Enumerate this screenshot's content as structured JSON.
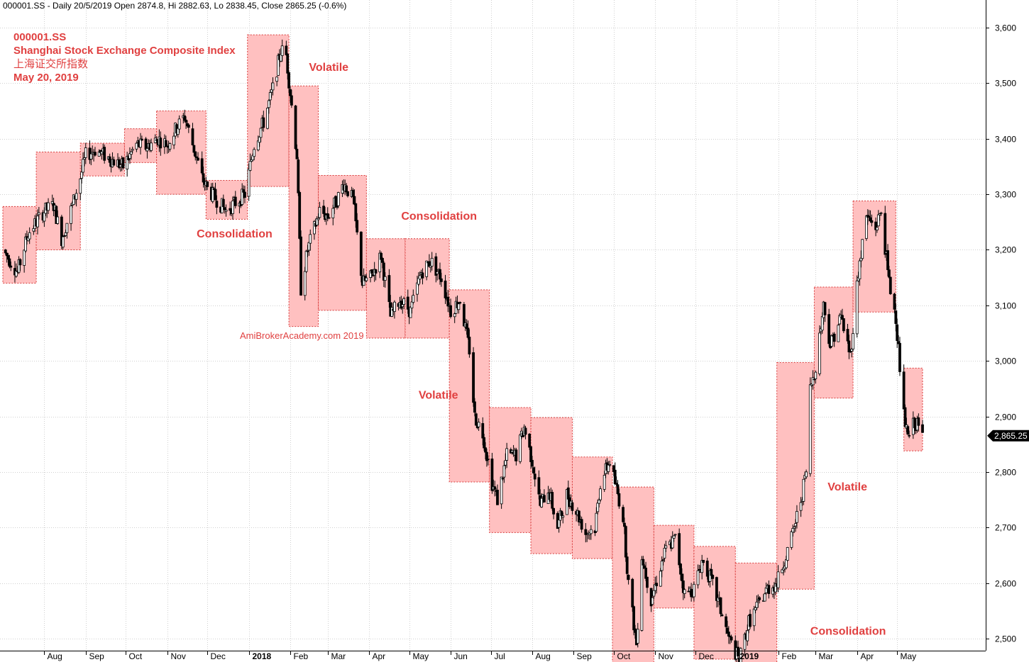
{
  "header": {
    "line": "000001.SS - Daily 20/5/2019 Open 2874.8, Hi 2882.63, Lo 2838.45, Close 2865.25 (-0.6%)"
  },
  "title_block": {
    "symbol": "000001.SS",
    "name": "Shanghai Stock Exchange Composite Index",
    "name_cn": "上海证交所指数",
    "date": "May 20, 2019"
  },
  "watermark": "AmiBrokerAcademy.com  2019",
  "colors": {
    "accent_text": "#e04040",
    "box_fill": "#ffc0c0",
    "box_border": "#d83c3c",
    "candle": "#000000",
    "grid": "#d0d0d0"
  },
  "chart_data": {
    "type": "candlestick",
    "title": "000001.SS - Daily 20/5/2019 Open 2874.8, Hi 2882.63, Lo 2838.45, Close 2865.25 (-0.6%)",
    "x_range": [
      "2017-07-01",
      "2019-05-20"
    ],
    "ylim": [
      2430,
      3640
    ],
    "y_ticks": [
      2500,
      2600,
      2700,
      2800,
      2900,
      3000,
      3100,
      3200,
      3300,
      3400,
      3500,
      3600
    ],
    "y_tick_labels": [
      "2,500",
      "2,600",
      "2,700",
      "2,800",
      "2,900",
      "3,000",
      "3,100",
      "3,200",
      "3,300",
      "3,400",
      "3,500",
      "3,600"
    ],
    "last_value": 2865.25,
    "last_value_label": "2,865.25",
    "grid": true,
    "months": [
      {
        "label": "Aug",
        "date": "2017-08-01",
        "bold": false
      },
      {
        "label": "Sep",
        "date": "2017-09-01",
        "bold": false
      },
      {
        "label": "Oct",
        "date": "2017-10-01",
        "bold": false
      },
      {
        "label": "Nov",
        "date": "2017-11-01",
        "bold": false
      },
      {
        "label": "Dec",
        "date": "2017-12-01",
        "bold": false
      },
      {
        "label": "2018",
        "date": "2018-01-01",
        "bold": true
      },
      {
        "label": "Feb",
        "date": "2018-02-01",
        "bold": false
      },
      {
        "label": "Mar",
        "date": "2018-03-01",
        "bold": false
      },
      {
        "label": "Apr",
        "date": "2018-04-01",
        "bold": false
      },
      {
        "label": "May",
        "date": "2018-05-01",
        "bold": false
      },
      {
        "label": "Jun",
        "date": "2018-06-01",
        "bold": false
      },
      {
        "label": "Jul",
        "date": "2018-07-01",
        "bold": false
      },
      {
        "label": "Aug",
        "date": "2018-08-01",
        "bold": false
      },
      {
        "label": "Sep",
        "date": "2018-09-01",
        "bold": false
      },
      {
        "label": "Oct",
        "date": "2018-10-01",
        "bold": false
      },
      {
        "label": "Nov",
        "date": "2018-11-01",
        "bold": false
      },
      {
        "label": "Dec",
        "date": "2018-12-01",
        "bold": false
      },
      {
        "label": "2019",
        "date": "2019-01-01",
        "bold": true
      },
      {
        "label": "Feb",
        "date": "2019-02-01",
        "bold": false
      },
      {
        "label": "Mar",
        "date": "2019-03-01",
        "bold": false
      },
      {
        "label": "Apr",
        "date": "2019-04-01",
        "bold": false
      },
      {
        "label": "May",
        "date": "2019-05-01",
        "bold": false
      }
    ],
    "path": [
      [
        "2017-07-01",
        3200
      ],
      [
        "2017-07-12",
        3160
      ],
      [
        "2017-07-20",
        3230
      ],
      [
        "2017-08-01",
        3270
      ],
      [
        "2017-08-08",
        3280
      ],
      [
        "2017-08-14",
        3220
      ],
      [
        "2017-08-22",
        3280
      ],
      [
        "2017-08-28",
        3330
      ],
      [
        "2017-09-01",
        3370
      ],
      [
        "2017-09-08",
        3380
      ],
      [
        "2017-09-15",
        3370
      ],
      [
        "2017-09-22",
        3360
      ],
      [
        "2017-09-29",
        3350
      ],
      [
        "2017-10-09",
        3390
      ],
      [
        "2017-10-16",
        3385
      ],
      [
        "2017-10-25",
        3400
      ],
      [
        "2017-11-01",
        3390
      ],
      [
        "2017-11-08",
        3420
      ],
      [
        "2017-11-14",
        3440
      ],
      [
        "2017-11-20",
        3390
      ],
      [
        "2017-11-27",
        3330
      ],
      [
        "2017-12-01",
        3310
      ],
      [
        "2017-12-08",
        3290
      ],
      [
        "2017-12-15",
        3270
      ],
      [
        "2017-12-22",
        3285
      ],
      [
        "2017-12-29",
        3300
      ],
      [
        "2018-01-05",
        3390
      ],
      [
        "2018-01-12",
        3430
      ],
      [
        "2018-01-19",
        3490
      ],
      [
        "2018-01-25",
        3560
      ],
      [
        "2018-01-29",
        3550
      ],
      [
        "2018-02-02",
        3460
      ],
      [
        "2018-02-06",
        3370
      ],
      [
        "2018-02-09",
        3130
      ],
      [
        "2018-02-14",
        3200
      ],
      [
        "2018-02-23",
        3270
      ],
      [
        "2018-03-01",
        3260
      ],
      [
        "2018-03-08",
        3290
      ],
      [
        "2018-03-13",
        3320
      ],
      [
        "2018-03-20",
        3290
      ],
      [
        "2018-03-27",
        3140
      ],
      [
        "2018-04-02",
        3150
      ],
      [
        "2018-04-10",
        3190
      ],
      [
        "2018-04-17",
        3080
      ],
      [
        "2018-04-24",
        3110
      ],
      [
        "2018-05-02",
        3090
      ],
      [
        "2018-05-10",
        3160
      ],
      [
        "2018-05-17",
        3180
      ],
      [
        "2018-05-25",
        3150
      ],
      [
        "2018-06-01",
        3090
      ],
      [
        "2018-06-08",
        3110
      ],
      [
        "2018-06-15",
        3020
      ],
      [
        "2018-06-19",
        2900
      ],
      [
        "2018-06-25",
        2870
      ],
      [
        "2018-07-02",
        2780
      ],
      [
        "2018-07-06",
        2750
      ],
      [
        "2018-07-13",
        2830
      ],
      [
        "2018-07-20",
        2830
      ],
      [
        "2018-07-26",
        2880
      ],
      [
        "2018-08-01",
        2820
      ],
      [
        "2018-08-07",
        2740
      ],
      [
        "2018-08-13",
        2770
      ],
      [
        "2018-08-20",
        2700
      ],
      [
        "2018-08-27",
        2760
      ],
      [
        "2018-09-03",
        2730
      ],
      [
        "2018-09-10",
        2690
      ],
      [
        "2018-09-17",
        2700
      ],
      [
        "2018-09-21",
        2780
      ],
      [
        "2018-09-28",
        2820
      ],
      [
        "2018-10-08",
        2720
      ],
      [
        "2018-10-12",
        2600
      ],
      [
        "2018-10-18",
        2490
      ],
      [
        "2018-10-22",
        2650
      ],
      [
        "2018-10-29",
        2570
      ],
      [
        "2018-11-05",
        2630
      ],
      [
        "2018-11-09",
        2660
      ],
      [
        "2018-11-16",
        2680
      ],
      [
        "2018-11-23",
        2580
      ],
      [
        "2018-11-30",
        2590
      ],
      [
        "2018-12-06",
        2640
      ],
      [
        "2018-12-12",
        2610
      ],
      [
        "2018-12-19",
        2560
      ],
      [
        "2018-12-26",
        2500
      ],
      [
        "2019-01-03",
        2460
      ],
      [
        "2019-01-10",
        2530
      ],
      [
        "2019-01-17",
        2560
      ],
      [
        "2019-01-24",
        2590
      ],
      [
        "2019-01-31",
        2600
      ],
      [
        "2019-02-11",
        2680
      ],
      [
        "2019-02-18",
        2750
      ],
      [
        "2019-02-22",
        2800
      ],
      [
        "2019-02-25",
        2950
      ],
      [
        "2019-03-01",
        2990
      ],
      [
        "2019-03-07",
        3100
      ],
      [
        "2019-03-12",
        3030
      ],
      [
        "2019-03-20",
        3080
      ],
      [
        "2019-03-27",
        3010
      ],
      [
        "2019-04-02",
        3160
      ],
      [
        "2019-04-08",
        3260
      ],
      [
        "2019-04-15",
        3240
      ],
      [
        "2019-04-19",
        3270
      ],
      [
        "2019-04-25",
        3140
      ],
      [
        "2019-04-30",
        3080
      ],
      [
        "2019-05-06",
        2900
      ],
      [
        "2019-05-09",
        2860
      ],
      [
        "2019-05-14",
        2890
      ],
      [
        "2019-05-17",
        2880
      ],
      [
        "2019-05-20",
        2865
      ]
    ],
    "regions": [
      {
        "start": "2017-07-01",
        "end": "2017-07-26",
        "low": 3140,
        "high": 3278
      },
      {
        "start": "2017-07-26",
        "end": "2017-08-28",
        "low": 3200,
        "high": 3376
      },
      {
        "start": "2017-08-28",
        "end": "2017-09-30",
        "low": 3333,
        "high": 3392
      },
      {
        "start": "2017-09-30",
        "end": "2017-10-24",
        "low": 3357,
        "high": 3418
      },
      {
        "start": "2017-10-24",
        "end": "2017-11-30",
        "low": 3300,
        "high": 3450
      },
      {
        "start": "2017-11-30",
        "end": "2017-12-31",
        "low": 3255,
        "high": 3325
      },
      {
        "start": "2017-12-31",
        "end": "2018-01-31",
        "low": 3314,
        "high": 3587
      },
      {
        "start": "2018-01-31",
        "end": "2018-02-22",
        "low": 3062,
        "high": 3495
      },
      {
        "start": "2018-02-22",
        "end": "2018-03-30",
        "low": 3091,
        "high": 3334
      },
      {
        "start": "2018-03-30",
        "end": "2018-04-28",
        "low": 3041,
        "high": 3220
      },
      {
        "start": "2018-04-28",
        "end": "2018-05-31",
        "low": 3041,
        "high": 3220
      },
      {
        "start": "2018-05-31",
        "end": "2018-06-30",
        "low": 2782,
        "high": 3128
      },
      {
        "start": "2018-06-30",
        "end": "2018-07-31",
        "low": 2691,
        "high": 2916
      },
      {
        "start": "2018-07-31",
        "end": "2018-08-31",
        "low": 2653,
        "high": 2898
      },
      {
        "start": "2018-08-31",
        "end": "2018-09-30",
        "low": 2644,
        "high": 2827
      },
      {
        "start": "2018-09-30",
        "end": "2018-10-31",
        "low": 2449,
        "high": 2773
      },
      {
        "start": "2018-10-31",
        "end": "2018-11-30",
        "low": 2555,
        "high": 2704
      },
      {
        "start": "2018-11-30",
        "end": "2018-12-31",
        "low": 2463,
        "high": 2666
      },
      {
        "start": "2018-12-31",
        "end": "2019-01-31",
        "low": 2447,
        "high": 2636
      },
      {
        "start": "2019-01-31",
        "end": "2019-02-28",
        "low": 2589,
        "high": 2997
      },
      {
        "start": "2019-02-28",
        "end": "2019-03-29",
        "low": 2933,
        "high": 3133
      },
      {
        "start": "2019-03-29",
        "end": "2019-04-30",
        "low": 3088,
        "high": 3288
      },
      {
        "start": "2019-05-06",
        "end": "2019-05-20",
        "low": 2838,
        "high": 2987
      }
    ],
    "annotations": [
      {
        "text": "Volatile",
        "date": "2018-02-15",
        "value": 3522
      },
      {
        "text": "Consolidation",
        "date": "2017-11-23",
        "value": 3222
      },
      {
        "text": "Consolidation",
        "date": "2018-04-25",
        "value": 3254
      },
      {
        "text": "Volatile",
        "date": "2018-05-08",
        "value": 2932
      },
      {
        "text": "Volatile",
        "date": "2019-03-10",
        "value": 2767
      },
      {
        "text": "Consolidation",
        "date": "2019-02-25",
        "value": 2507
      }
    ]
  }
}
